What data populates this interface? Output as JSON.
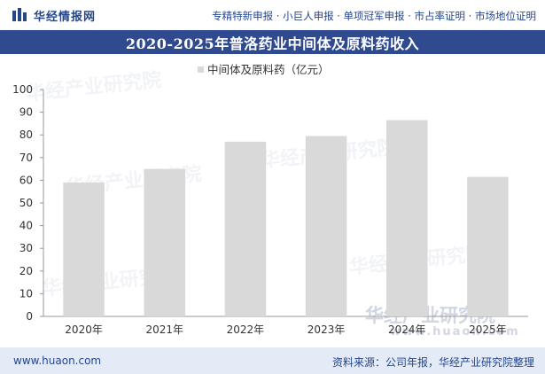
{
  "header": {
    "logo_text": "华经情报网",
    "tagline": "专精特新申报 · 小巨人申报 · 单项冠军申报 · 市占率证明 · 市场地位证明"
  },
  "title": "2020-2025年普洛药业中间体及原料药收入",
  "watermark": {
    "text": "华经产业研究院",
    "url": "www.huaon.com"
  },
  "colors": {
    "brand": "#2f4a8f",
    "bar": "#d9d9d9",
    "axis": "#999999",
    "footer_bg": "#e5ebf6"
  },
  "chart_data": {
    "type": "bar",
    "categories": [
      "2020年",
      "2021年",
      "2022年",
      "2023年",
      "2024年",
      "2025年"
    ],
    "series": [
      {
        "name": "中间体及原料药（亿元）",
        "values": [
          59,
          65,
          77,
          79.5,
          86.5,
          61.5
        ]
      }
    ],
    "ylim": [
      0,
      100
    ],
    "yticks": [
      0,
      10,
      20,
      30,
      40,
      50,
      60,
      70,
      80,
      90,
      100
    ],
    "grid": false,
    "legend_position": "top-left"
  },
  "footer": {
    "url": "www.huaon.com",
    "source": "资料来源：公司年报，华经产业研究院整理"
  }
}
